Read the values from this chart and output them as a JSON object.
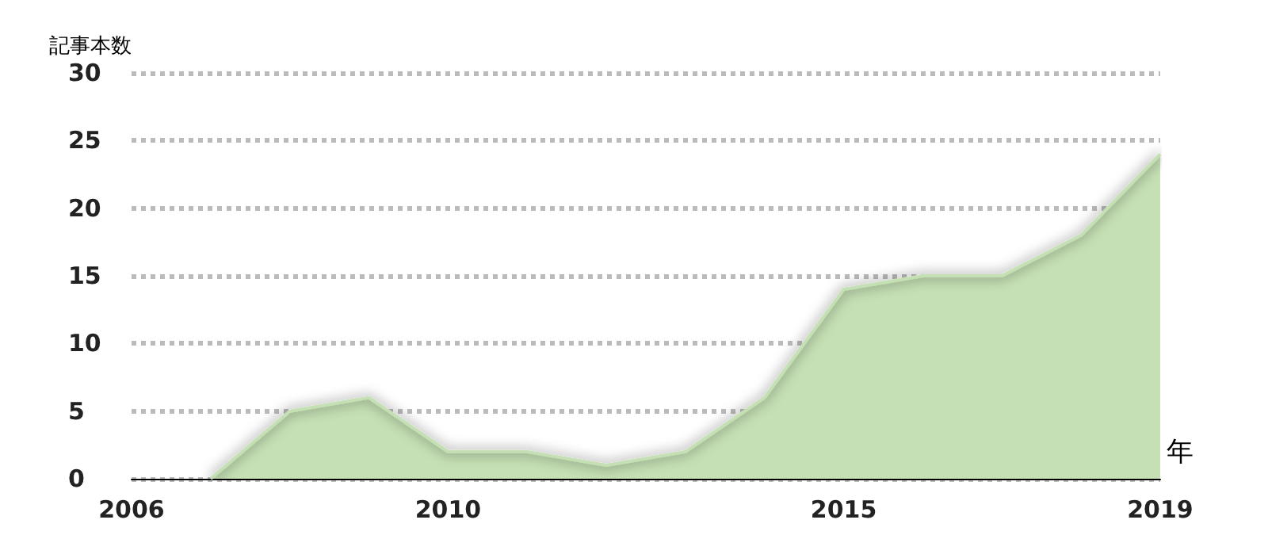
{
  "chart_data": {
    "type": "area",
    "xlabel": "年",
    "ylabel": "記事本数",
    "x": [
      2007,
      2008,
      2009,
      2010,
      2011,
      2012,
      2013,
      2014,
      2015,
      2016,
      2017,
      2018,
      2019
    ],
    "series": [
      {
        "color": "#c5e0b4",
        "values": [
          0,
          5,
          6,
          2,
          2,
          1,
          2,
          6,
          14,
          15,
          15,
          18,
          24
        ]
      }
    ],
    "xlim": [
      2006,
      2019
    ],
    "xticks": [
      2006,
      2010,
      2015,
      2019
    ],
    "ylim": [
      0,
      30
    ],
    "yticks": [
      0,
      5,
      10,
      15,
      20,
      25,
      30
    ],
    "grid": "y"
  }
}
